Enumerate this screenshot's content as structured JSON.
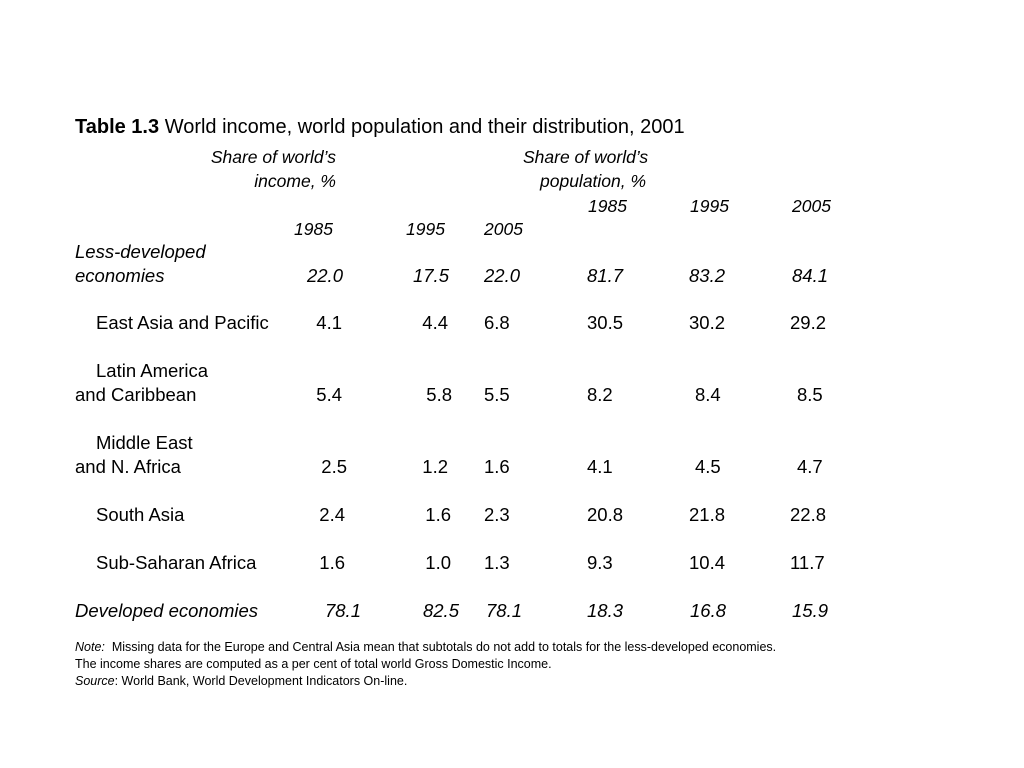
{
  "title": {
    "label": "Table 1.3",
    "text": "World income, world population and their distribution, 2001"
  },
  "headers": {
    "income_line1": "Share of world’s",
    "income_line2": "income, %",
    "population_line1": "Share of world’s",
    "population_line2": "population, %",
    "income_years": [
      "1985",
      "1995",
      "2005"
    ],
    "population_years": [
      "1985",
      "1995",
      "2005"
    ]
  },
  "rows": [
    {
      "label_line1": "Less-developed",
      "label_line2": "economies",
      "italic": true,
      "income": [
        "22.0",
        "17.5",
        "22.0"
      ],
      "population": [
        "81.7",
        "83.2",
        "84.1"
      ]
    },
    {
      "label_line1": "East Asia and Pacific",
      "label_line2": "",
      "income": [
        "4.1",
        "4.4",
        "6.8"
      ],
      "population": [
        "30.5",
        "30.2",
        "29.2"
      ]
    },
    {
      "label_line1": "Latin America",
      "label_line2": "and Caribbean",
      "income": [
        "5.4",
        "5.8",
        "5.5"
      ],
      "population": [
        "8.2",
        "8.4",
        "8.5"
      ]
    },
    {
      "label_line1": "Middle East",
      "label_line2": "and N. Africa",
      "income": [
        "2.5",
        "1.2",
        "1.6"
      ],
      "population": [
        "4.1",
        "4.5",
        "4.7"
      ]
    },
    {
      "label_line1": "South Asia",
      "label_line2": "",
      "income": [
        "2.4",
        "1.6",
        "2.3"
      ],
      "population": [
        "20.8",
        "21.8",
        "22.8"
      ]
    },
    {
      "label_line1": "Sub-Saharan Africa",
      "label_line2": "",
      "income": [
        "1.6",
        "1.0",
        "1.3"
      ],
      "population": [
        "9.3",
        "10.4",
        "11.7"
      ]
    },
    {
      "label_line1": "Developed economies",
      "label_line2": "",
      "italic": true,
      "income": [
        "78.1",
        "82.5",
        "78.1"
      ],
      "population": [
        "18.3",
        "16.8",
        "15.9"
      ]
    }
  ],
  "notes": {
    "note_label": "Note:",
    "note_text": "Missing data for the Europe and Central Asia mean that subtotals do not add to totals for the less-developed economies.",
    "line2": "The income shares are computed as a per cent of total world Gross Domestic Income.",
    "source_label": "Source",
    "source_text": ": World Bank, World Development Indicators On-line."
  }
}
